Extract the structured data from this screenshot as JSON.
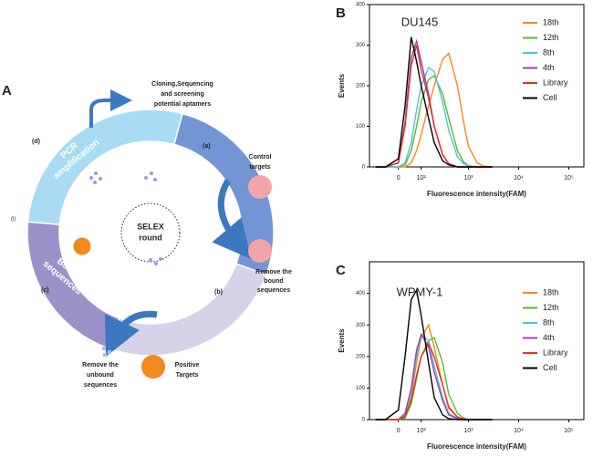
{
  "diagram": {
    "panel_label": "A",
    "cloning_note": [
      "Cloning,Sequencing",
      "and screening",
      "potential aptamers"
    ],
    "step_d": "(d)",
    "step_a": "(a)",
    "step_b": "(b)",
    "step_c": "(c)",
    "step_i": "(i)",
    "pcr": [
      "PCR",
      "amplification"
    ],
    "pool": [
      "Nucleic",
      "acid pool"
    ],
    "retain": [
      "Retain unbound",
      "sequences"
    ],
    "bound": [
      "Bound",
      "sequences"
    ],
    "selex": [
      "SELEX",
      "round"
    ],
    "control": [
      "Control",
      "targets"
    ],
    "remove_bound": [
      "Remove the",
      "bound",
      "sequences"
    ],
    "remove_unbound": [
      "Remove the",
      "unbound",
      "sequences"
    ],
    "positive": [
      "Positive",
      "Targets"
    ]
  },
  "chart_data": [
    {
      "type": "line",
      "label": "B",
      "title": "DU145",
      "x_label": "Fluorescence intensity(FAM)",
      "y_label": "Events",
      "xscale": "biexponential",
      "xlim": [
        -140,
        200000
      ],
      "xticks": [
        0,
        {
          "value": 100,
          "label": "10²"
        },
        {
          "value": 1000,
          "label": "10³"
        },
        {
          "value": 10000,
          "label": "10⁴"
        },
        {
          "value": 100000,
          "label": "10⁵"
        }
      ],
      "ylim": [
        0,
        400
      ],
      "yticks": [
        0,
        100,
        200,
        300,
        400
      ],
      "legend": "upper right",
      "x": [
        -100,
        -50,
        0,
        25,
        50,
        75,
        100,
        150,
        200,
        300,
        400,
        600,
        800,
        1000,
        1500,
        2000,
        3000
      ],
      "series": [
        {
          "name": "18th",
          "color": "#f28a1e",
          "values": [
            0,
            0,
            0,
            0,
            10,
            40,
            80,
            150,
            200,
            265,
            280,
            200,
            110,
            50,
            10,
            2,
            0
          ]
        },
        {
          "name": "12th",
          "color": "#5cb632",
          "values": [
            0,
            0,
            0,
            5,
            40,
            100,
            160,
            215,
            225,
            180,
            120,
            40,
            12,
            3,
            0,
            0,
            0
          ]
        },
        {
          "name": "8th",
          "color": "#4fc3d6",
          "values": [
            0,
            0,
            0,
            10,
            60,
            140,
            200,
            245,
            235,
            160,
            90,
            25,
            8,
            2,
            0,
            0,
            0
          ]
        },
        {
          "name": "4th",
          "color": "#a23fb2",
          "values": [
            0,
            0,
            10,
            110,
            270,
            310,
            260,
            180,
            100,
            30,
            8,
            0,
            0,
            0,
            0,
            0,
            0
          ]
        },
        {
          "name": "Library",
          "color": "#e62e2a",
          "values": [
            0,
            0,
            10,
            100,
            250,
            300,
            240,
            170,
            100,
            30,
            8,
            0,
            0,
            0,
            0,
            0,
            0
          ]
        },
        {
          "name": "Cell",
          "color": "#000000",
          "values": [
            0,
            0,
            20,
            150,
            320,
            260,
            200,
            120,
            60,
            15,
            5,
            0,
            0,
            0,
            0,
            0,
            0
          ]
        }
      ]
    },
    {
      "type": "line",
      "label": "C",
      "title": "WPMY-1",
      "x_label": "Fluorescence intensity(FAM)",
      "y_label": "Events",
      "xscale": "biexponential",
      "xlim": [
        -140,
        200000
      ],
      "xticks": [
        0,
        {
          "value": 100,
          "label": "10²"
        },
        {
          "value": 1000,
          "label": "10³"
        },
        {
          "value": 10000,
          "label": "10⁴"
        },
        {
          "value": 100000,
          "label": "10⁵"
        }
      ],
      "ylim": [
        0,
        500
      ],
      "yticks": [
        0,
        100,
        200,
        300,
        400
      ],
      "legend": "upper right",
      "x": [
        -100,
        -50,
        0,
        25,
        50,
        75,
        100,
        150,
        200,
        300,
        400,
        600,
        800,
        1000,
        1500,
        2000,
        3000
      ],
      "series": [
        {
          "name": "18th",
          "color": "#f28a1e",
          "values": [
            0,
            0,
            0,
            10,
            70,
            180,
            260,
            300,
            230,
            110,
            35,
            8,
            2,
            0,
            0,
            0,
            0
          ]
        },
        {
          "name": "12th",
          "color": "#5cb632",
          "values": [
            0,
            0,
            0,
            5,
            50,
            130,
            200,
            250,
            260,
            180,
            80,
            20,
            5,
            0,
            0,
            0,
            0
          ]
        },
        {
          "name": "8th",
          "color": "#4fc3d6",
          "values": [
            0,
            0,
            0,
            15,
            90,
            200,
            270,
            250,
            170,
            70,
            20,
            4,
            0,
            0,
            0,
            0,
            0
          ]
        },
        {
          "name": "4th",
          "color": "#a23fb2",
          "values": [
            0,
            0,
            0,
            20,
            100,
            220,
            270,
            230,
            150,
            60,
            15,
            3,
            0,
            0,
            0,
            0,
            0
          ]
        },
        {
          "name": "Library",
          "color": "#e62e2a",
          "values": [
            0,
            0,
            0,
            10,
            60,
            140,
            200,
            240,
            200,
            110,
            40,
            8,
            2,
            0,
            0,
            0,
            0
          ]
        },
        {
          "name": "Cell",
          "color": "#000000",
          "values": [
            0,
            0,
            30,
            200,
            380,
            410,
            330,
            180,
            70,
            15,
            3,
            0,
            0,
            0,
            0,
            0,
            0
          ]
        }
      ]
    }
  ]
}
